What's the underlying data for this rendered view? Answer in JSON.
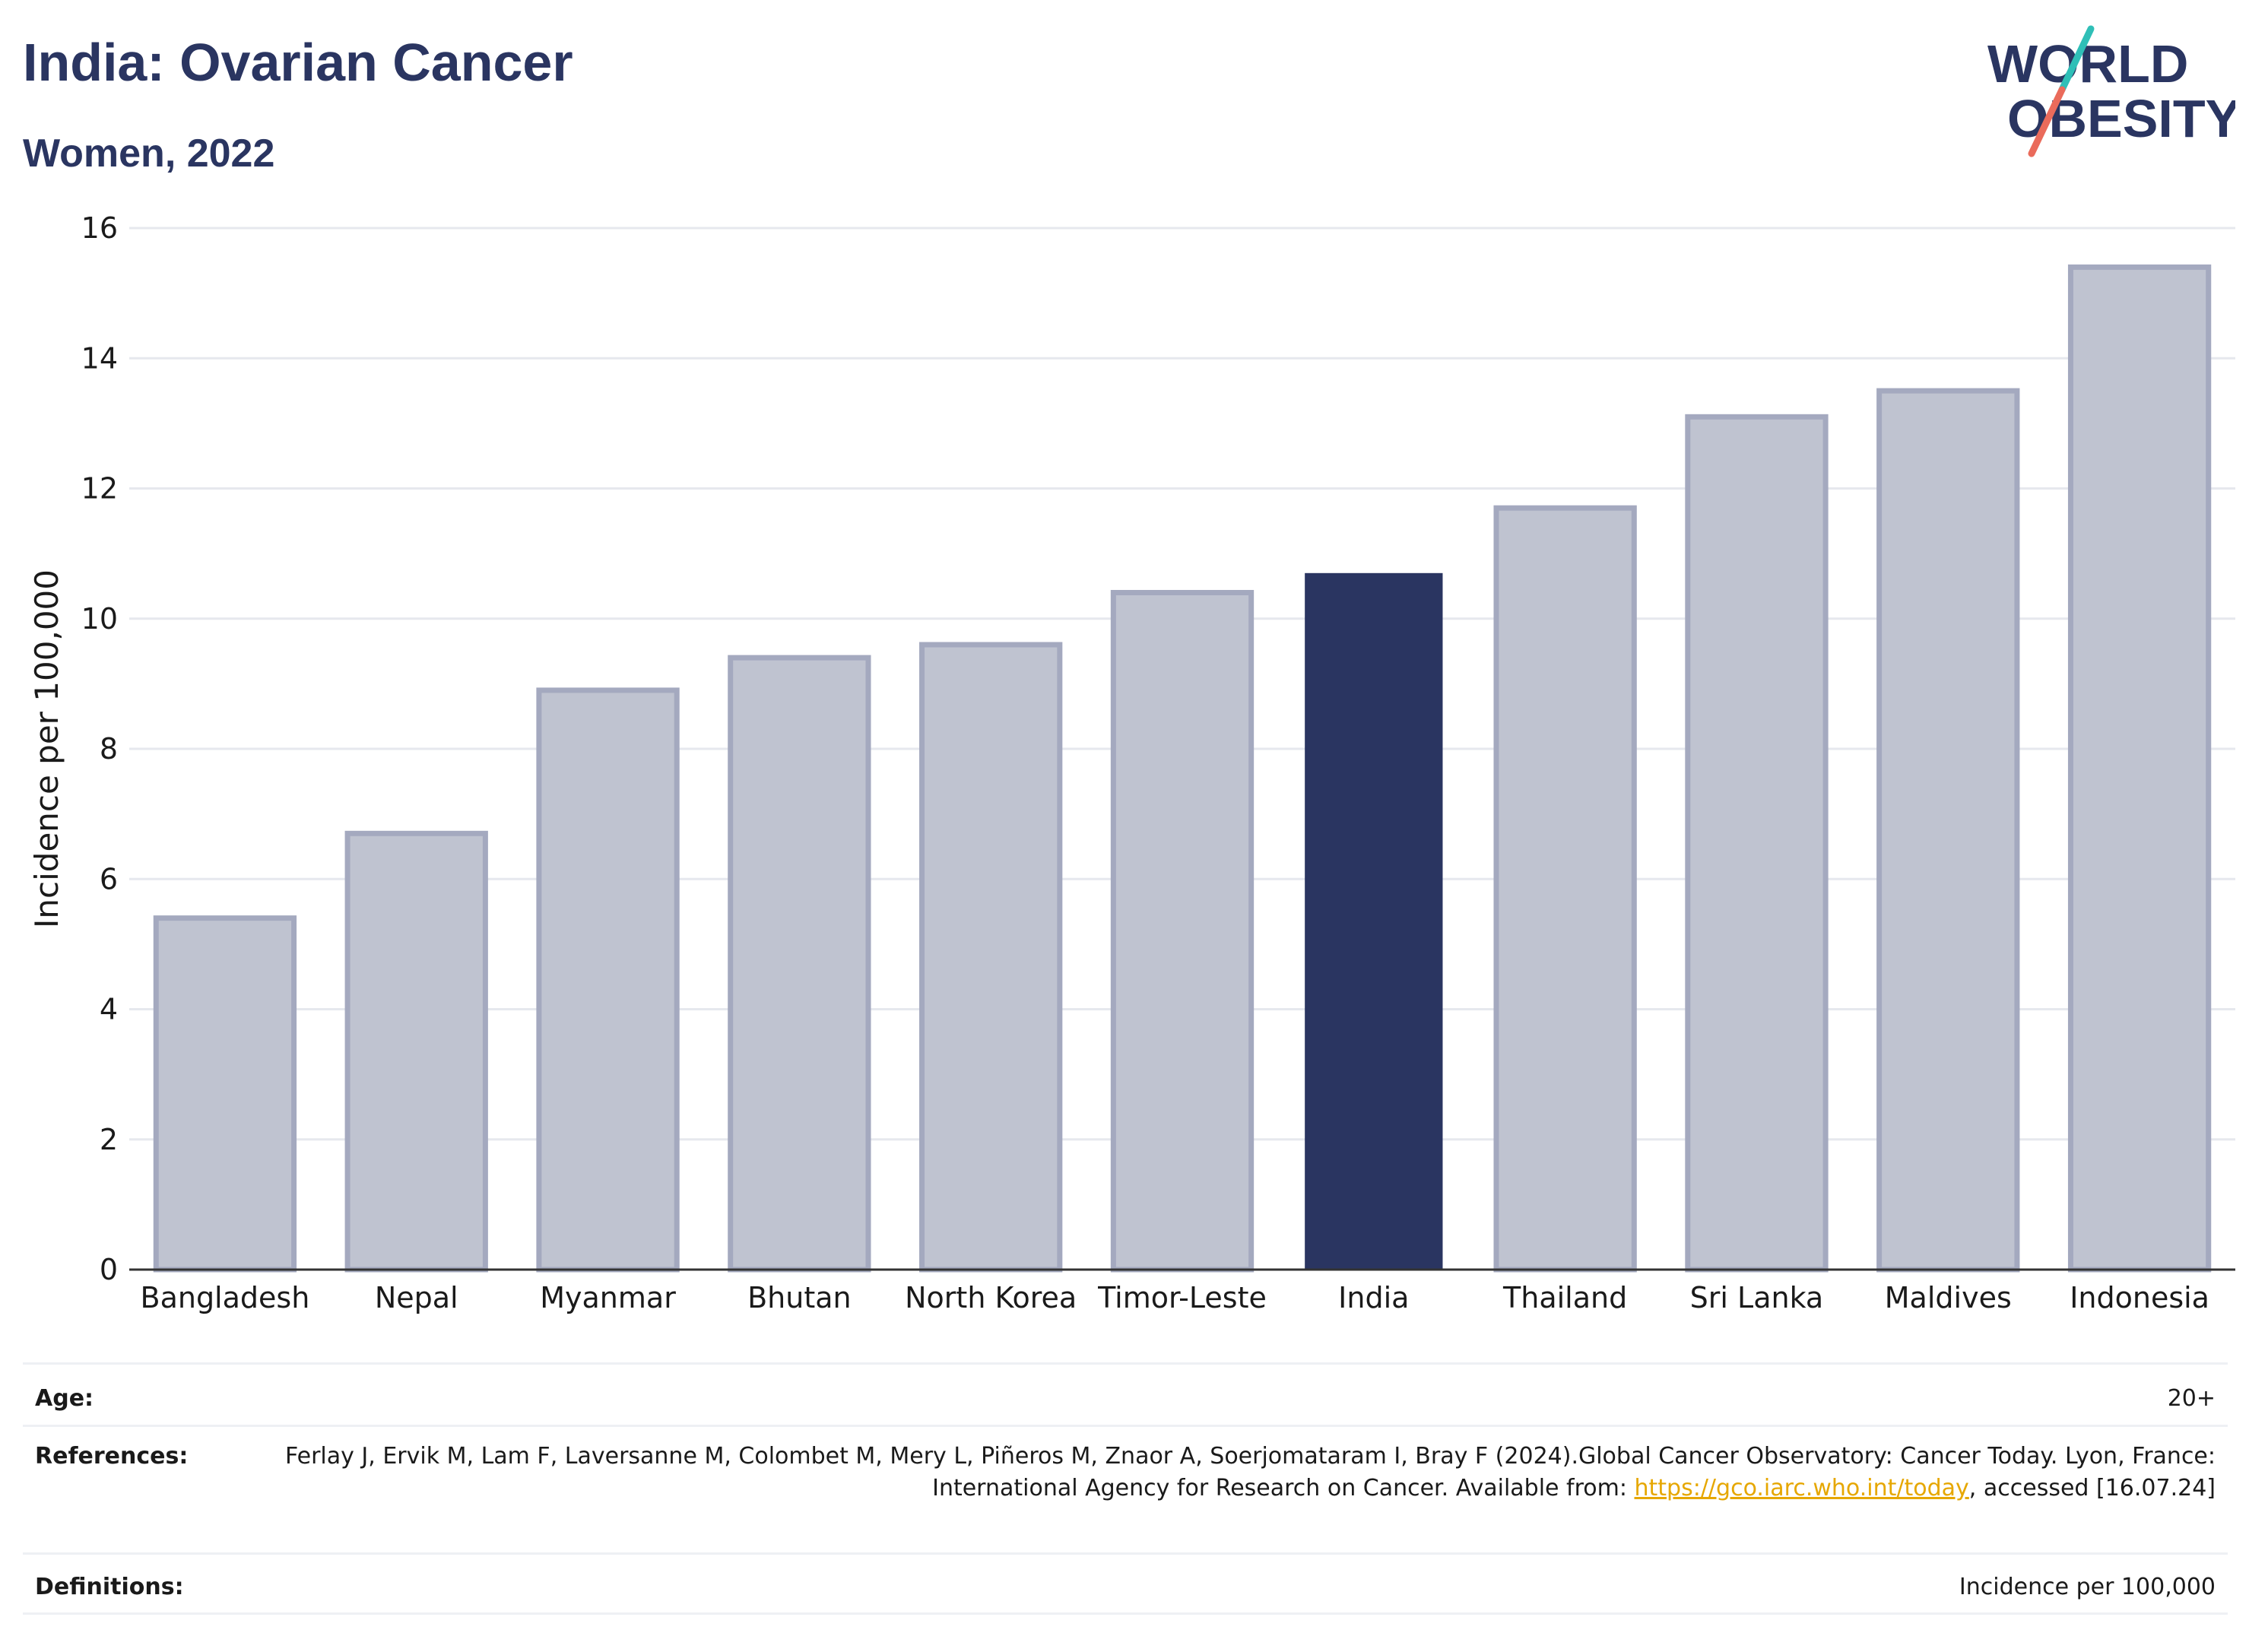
{
  "header": {
    "title": "India: Ovarian Cancer",
    "subtitle": "Women, 2022",
    "logo_line1": "WORLD",
    "logo_line2": "OBESITY"
  },
  "colors": {
    "highlight": "#2a3561",
    "bar": "#bfc3d0",
    "bar_outline": "#a4a9bf",
    "accent_teal": "#2fbfb7",
    "accent_coral": "#ea6b5b",
    "link": "#e6a700"
  },
  "chart_data": {
    "type": "bar",
    "categories": [
      "Bangladesh",
      "Nepal",
      "Myanmar",
      "Bhutan",
      "North Korea",
      "Timor-Leste",
      "India",
      "Thailand",
      "Sri Lanka",
      "Maldives",
      "Indonesia"
    ],
    "values": [
      5.4,
      6.7,
      8.9,
      9.4,
      9.6,
      10.4,
      10.7,
      11.7,
      13.1,
      13.5,
      15.4
    ],
    "highlight": "India",
    "ylabel": "Incidence per 100,000",
    "ylim": [
      0,
      16
    ],
    "yticks": [
      0,
      2,
      4,
      6,
      8,
      10,
      12,
      14,
      16
    ],
    "grid": true
  },
  "info": {
    "age_label": "Age:",
    "age_value": "20+",
    "references_label": "References:",
    "references_text": "Ferlay J, Ervik M, Lam F, Laversanne M, Colombet M, Mery L, Piñeros M, Znaor A, Soerjomataram I, Bray F (2024).Global Cancer Observatory: Cancer Today. Lyon, France: International Agency for Research on Cancer. Available from: ",
    "references_link": "https://gco.iarc.who.int/today",
    "references_suffix": ", accessed [16.07.24]",
    "definitions_label": "Definitions:",
    "definitions_value": "Incidence per 100,000"
  }
}
